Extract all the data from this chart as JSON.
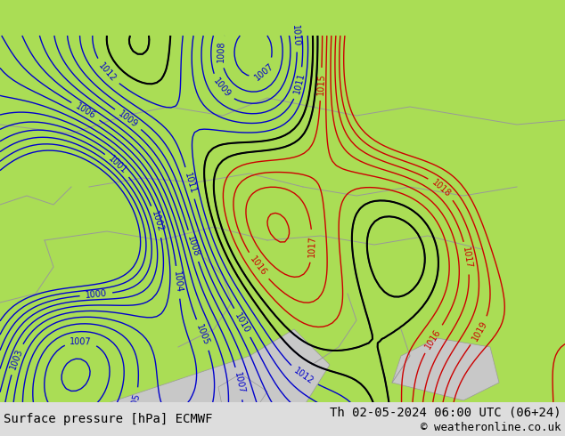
{
  "title_left": "Surface pressure [hPa] ECMWF",
  "title_right": "Th 02-05-2024 06:00 UTC (06+24)",
  "copyright": "© weatheronline.co.uk",
  "bg_color": "#aadd55",
  "land_color": "#aadd55",
  "sea_color": "#cccccc",
  "border_color": "#999999",
  "blue_isobar_color": "#0000cc",
  "black_isobar_color": "#000000",
  "red_isobar_color": "#cc0000",
  "text_color": "#000000",
  "bottom_bar_color": "#dddddd",
  "font_size_bottom": 10,
  "font_size_labels": 8
}
